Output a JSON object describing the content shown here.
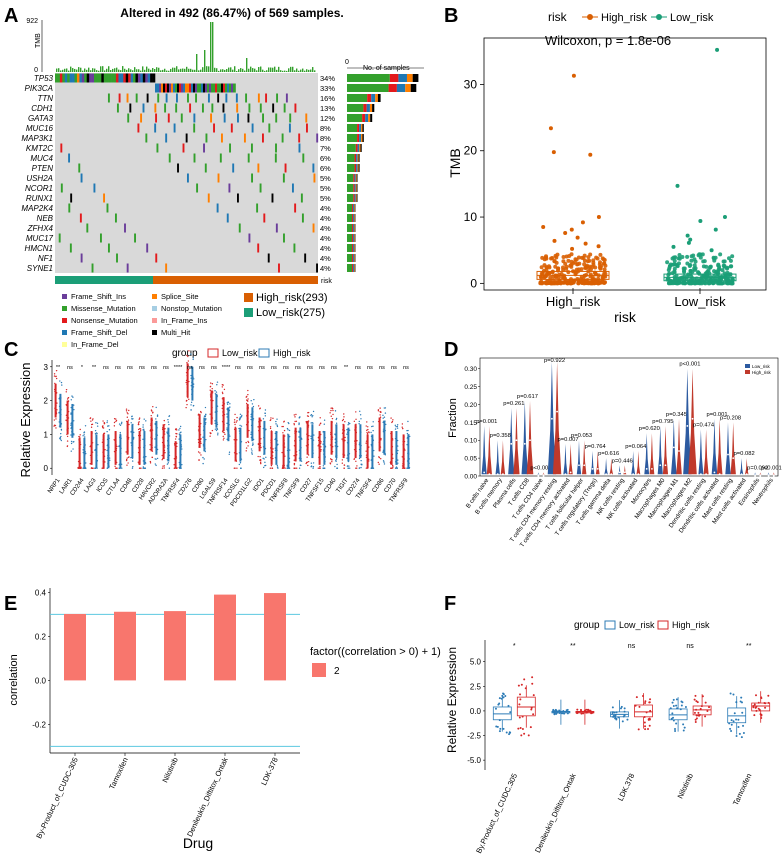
{
  "panels": {
    "A": "A",
    "B": "B",
    "C": "C",
    "D": "D",
    "E": "E",
    "F": "F"
  },
  "colors": {
    "high": "#d95f02",
    "low": "#1b9e77",
    "frame_shift_ins": "#6a3d9a",
    "missense": "#33a02c",
    "nonsense": "#e31a1c",
    "frame_shift_del": "#1f78b4",
    "in_frame_del": "#ffff99",
    "splice_site": "#ff7f00",
    "nonstop": "#a6cee3",
    "in_frame_ins": "#fb9a99",
    "multi_hit": "#000000",
    "grey": "#d9d9d9",
    "c_low": "#d62728",
    "c_high": "#2c7bb6",
    "e_bar": "#f8766d",
    "e_line": "#5bc8e0"
  },
  "chart_data": [
    {
      "panel": "A",
      "type": "table",
      "title": "Altered in 492 (86.47%) of 569 samples.",
      "tmb_label": "TMB",
      "tmb_max": "922",
      "tmb_min": "0",
      "genes": [
        "TP53",
        "PIK3CA",
        "TTN",
        "CDH1",
        "GATA3",
        "MUC16",
        "MAP3K1",
        "KMT2C",
        "MUC4",
        "PTEN",
        "USH2A",
        "NCOR1",
        "RUNX1",
        "MAP2K4",
        "NEB",
        "ZFHX4",
        "MUC17",
        "HMCN1",
        "NF1",
        "SYNE1"
      ],
      "percents": [
        "34%",
        "33%",
        "16%",
        "13%",
        "12%",
        "8%",
        "8%",
        "7%",
        "6%",
        "6%",
        "5%",
        "5%",
        "5%",
        "4%",
        "4%",
        "4%",
        "4%",
        "4%",
        "4%",
        "4%"
      ],
      "percent_values": [
        34,
        33,
        16,
        13,
        12,
        8,
        8,
        7,
        6,
        6,
        5,
        5,
        5,
        4,
        4,
        4,
        4,
        4,
        4,
        4
      ],
      "side_title": "No. of samples",
      "side_zero": "0",
      "risk_label": "risk",
      "mutation_legend": [
        "Frame_Shift_Ins",
        "Missense_Mutation",
        "Nonsense_Mutation",
        "Frame_Shift_Del",
        "In_Frame_Del",
        "Splice_Site",
        "Nonstop_Mutation",
        "In_Frame_Ins",
        "Multi_Hit"
      ],
      "risk_legend": [
        "High_risk(293)",
        "Low_risk(275)"
      ]
    },
    {
      "panel": "B",
      "type": "scatter",
      "legend_title": "risk",
      "series": [
        "High_risk",
        "Low_risk"
      ],
      "annotation": "Wilcoxon, p = 1.8e-06",
      "categories": [
        "High_risk",
        "Low_risk"
      ],
      "xlabel": "risk",
      "ylabel": "TMB",
      "yticks": [
        "0",
        "10",
        "20",
        "30"
      ],
      "ylim": [
        -1,
        37
      ],
      "box": {
        "High_risk": {
          "q1": 0.6,
          "median": 1.2,
          "q3": 1.8
        },
        "Low_risk": {
          "q1": 0.4,
          "median": 0.9,
          "q3": 1.4
        }
      },
      "outliers_high": [
        31.3,
        23.4,
        19.8,
        19.4,
        10.0,
        9.2,
        8.5,
        8.1,
        7.6,
        6.9,
        6.4,
        6.0,
        5.6,
        5.2
      ],
      "outliers_low": [
        35.2,
        14.7,
        10.0,
        9.4,
        8.1,
        7.2,
        6.6,
        6.1,
        5.5,
        5.0
      ]
    },
    {
      "panel": "C",
      "type": "bar",
      "legend_title": "group",
      "series": [
        "Low_risk",
        "High_risk"
      ],
      "ylabel": "Relative Expression",
      "yticks": [
        "0",
        "1",
        "2",
        "3"
      ],
      "ylim": [
        -0.2,
        3.2
      ],
      "categories": [
        "NRP1",
        "LAIR1",
        "CD244",
        "LAG3",
        "ICOS",
        "CTLA4",
        "CD48",
        "CD28",
        "HAVCR2",
        "ADORA2A",
        "TNFRSF4",
        "CD276",
        "CD80",
        "LGALS9",
        "TNFRSF14",
        "ICOSLG",
        "PDCD1LG2",
        "IDO1",
        "PDCD1",
        "TNFRSF8",
        "TNFSF9",
        "CD27",
        "TNFSF15",
        "CD40",
        "TIGIT",
        "CD274",
        "TNFSF4",
        "CD86",
        "CD70",
        "TNFRSF9"
      ],
      "significance": [
        "**",
        "ns",
        "*",
        "**",
        "ns",
        "ns",
        "ns",
        "ns",
        "ns",
        "ns",
        "****",
        "ns",
        "ns",
        "ns",
        "****",
        "ns",
        "ns",
        "ns",
        "ns",
        "ns",
        "ns",
        "ns",
        "ns",
        "ns",
        "**",
        "ns",
        "ns",
        "ns",
        "ns",
        "ns"
      ],
      "median_low": [
        2.0,
        1.5,
        0.4,
        0.6,
        0.5,
        0.6,
        0.9,
        0.6,
        1.0,
        0.8,
        0.3,
        2.6,
        1.1,
        1.8,
        1.6,
        0.7,
        1.4,
        1.0,
        0.6,
        0.5,
        0.7,
        0.9,
        0.6,
        0.9,
        0.8,
        0.8,
        0.5,
        1.0,
        0.6,
        0.5
      ],
      "median_high": [
        1.7,
        1.4,
        0.4,
        0.5,
        0.5,
        0.5,
        0.8,
        0.6,
        0.9,
        0.7,
        0.5,
        2.5,
        1.0,
        1.7,
        1.3,
        0.7,
        1.3,
        0.9,
        0.6,
        0.5,
        0.7,
        0.8,
        0.6,
        0.8,
        0.7,
        0.8,
        0.5,
        0.9,
        0.6,
        0.5
      ]
    },
    {
      "panel": "D",
      "type": "bar",
      "ylabel": "Fraction",
      "yticks": [
        "0.00",
        "0.05",
        "0.10",
        "0.15",
        "0.20",
        "0.25",
        "0.30"
      ],
      "ylim": [
        0,
        0.33
      ],
      "series": [
        "Low_risk",
        "High_risk"
      ],
      "categories": [
        "B cells naive",
        "B cells memory",
        "Plasma cells",
        "T cells CD8",
        "T cells CD4 naive",
        "T cells CD4 memory resting",
        "T cells CD4 memory activated",
        "T cells follicular helper",
        "T cells regulatory (Tregs)",
        "T cells gamma delta",
        "NK cells resting",
        "NK cells activated",
        "Monocytes",
        "Macrophages M0",
        "Macrophages M1",
        "Macrophages M2",
        "Dendritic cells resting",
        "Dendritic cells activated",
        "Mast cells resting",
        "Mast cells activated",
        "Eosinophils",
        "Neutrophils"
      ],
      "pvalues": [
        "p=0.001",
        "p=0.358",
        "p=0.261",
        "p=0.617",
        "p<0.001",
        "p=0.922",
        "p=0.007",
        "p=0.053",
        "p=0.764",
        "p=0.616",
        "p=0.446",
        "p=0.064",
        "p=0.620",
        "p=0.795",
        "p=0.345",
        "p<0.001",
        "p=0.474",
        "p=0.001",
        "p=0.208",
        "p=0.082",
        "p=0.092",
        "p<0.001"
      ],
      "mean_low": [
        0.01,
        0.005,
        0.09,
        0.09,
        0.0,
        0.16,
        0.005,
        0.03,
        0.02,
        0.005,
        0.01,
        0.005,
        0.02,
        0.03,
        0.08,
        0.14,
        0.005,
        0.01,
        0.06,
        0.005,
        0.0,
        0.0
      ],
      "mean_high": [
        0.005,
        0.005,
        0.1,
        0.1,
        0.0,
        0.18,
        0.01,
        0.03,
        0.02,
        0.005,
        0.01,
        0.005,
        0.02,
        0.03,
        0.07,
        0.16,
        0.005,
        0.005,
        0.05,
        0.005,
        0.0,
        0.0
      ],
      "max_high": [
        0.14,
        0.1,
        0.19,
        0.21,
        0.01,
        0.32,
        0.09,
        0.1,
        0.07,
        0.05,
        0.03,
        0.07,
        0.12,
        0.14,
        0.16,
        0.3,
        0.13,
        0.16,
        0.15,
        0.05,
        0.01,
        0.01
      ]
    },
    {
      "panel": "E",
      "type": "bar",
      "categories": [
        "By-Product_of_CUDC-305",
        "Tamoxifen",
        "Nilotinib",
        "Denileukin_Diftitox_Ontak",
        "LDK-378"
      ],
      "values": [
        0.302,
        0.312,
        0.315,
        0.39,
        0.397
      ],
      "xlabel": "Drug",
      "ylabel": "correlation",
      "yticks": [
        "-0.2",
        "0.0",
        "0.2",
        "0.4"
      ],
      "ylim": [
        -0.33,
        0.42
      ],
      "hlines": [
        0.3,
        -0.3
      ],
      "legend_title": "factor((correlation > 0) + 1)",
      "legend_item": "2"
    },
    {
      "panel": "F",
      "type": "scatter",
      "legend_title": "group",
      "series": [
        "Low_risk",
        "High_risk"
      ],
      "ylabel": "Relative Expression",
      "yticks": [
        "-5.0",
        "-2.5",
        "0.0",
        "2.5",
        "5.0"
      ],
      "ylim": [
        -6.0,
        7.2
      ],
      "categories": [
        "By.Product_of_CUDC.305",
        "Denileukin_Diftitox_Ontak",
        "LDK.378",
        "Nilotinib",
        "Tamoxifen"
      ],
      "significance": [
        "*",
        "**",
        "ns",
        "ns",
        "**"
      ],
      "box_low": [
        {
          "q1": -0.9,
          "median": -0.3,
          "q3": 0.4
        },
        {
          "q1": -0.2,
          "median": -0.1,
          "q3": -0.05
        },
        {
          "q1": -0.6,
          "median": -0.35,
          "q3": -0.1
        },
        {
          "q1": -0.9,
          "median": -0.4,
          "q3": 0.2
        },
        {
          "q1": -1.2,
          "median": -0.5,
          "q3": 0.3
        }
      ],
      "box_high": [
        {
          "q1": -0.5,
          "median": 0.4,
          "q3": 1.4
        },
        {
          "q1": -0.2,
          "median": -0.1,
          "q3": -0.05
        },
        {
          "q1": -0.6,
          "median": -0.1,
          "q3": 0.6
        },
        {
          "q1": -0.4,
          "median": 0.1,
          "q3": 0.5
        },
        {
          "q1": 0.0,
          "median": 0.5,
          "q3": 0.8
        }
      ]
    }
  ]
}
